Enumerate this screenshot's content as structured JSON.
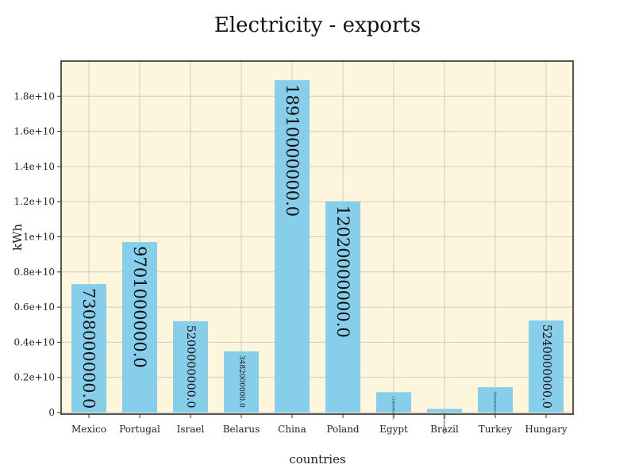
{
  "chart_data": {
    "type": "bar",
    "title": "Electricity - exports",
    "xlabel": "countries",
    "ylabel": "kWh",
    "categories": [
      "Mexico",
      "Portugal",
      "Israel",
      "Belarus",
      "China",
      "Poland",
      "Egypt",
      "Brazil",
      "Turkey",
      "Hungary"
    ],
    "values": [
      7308000000,
      9701000000,
      5200000000,
      3482000000,
      18910000000,
      12020000000,
      1158000000,
      208000000,
      1442000000,
      5240000000
    ],
    "value_labels": [
      "7308000000.0",
      "9701000000.0",
      "5200000000.0",
      "3482000000.0",
      "18910000000.0",
      "12020000000.0",
      "1158000000.0",
      "208000000.0",
      "1442000000.0",
      "5240000000.0"
    ],
    "ylim": [
      0,
      19800000000
    ],
    "yticks": [
      0,
      2000000000,
      4000000000,
      6000000000,
      8000000000,
      10000000000,
      12000000000,
      14000000000,
      16000000000,
      18000000000
    ],
    "ytick_labels": [
      "0",
      "0.2e+10",
      "0.4e+10",
      "0.6e+10",
      "0.8e+10",
      "1e+10",
      "1.2e+10",
      "1.4e+10",
      "1.6e+10",
      "1.8e+10"
    ],
    "grid": true,
    "colors": {
      "bar": "#87ceeb",
      "plot_background": "#fdf6dc",
      "grid": "#cccccc"
    }
  }
}
